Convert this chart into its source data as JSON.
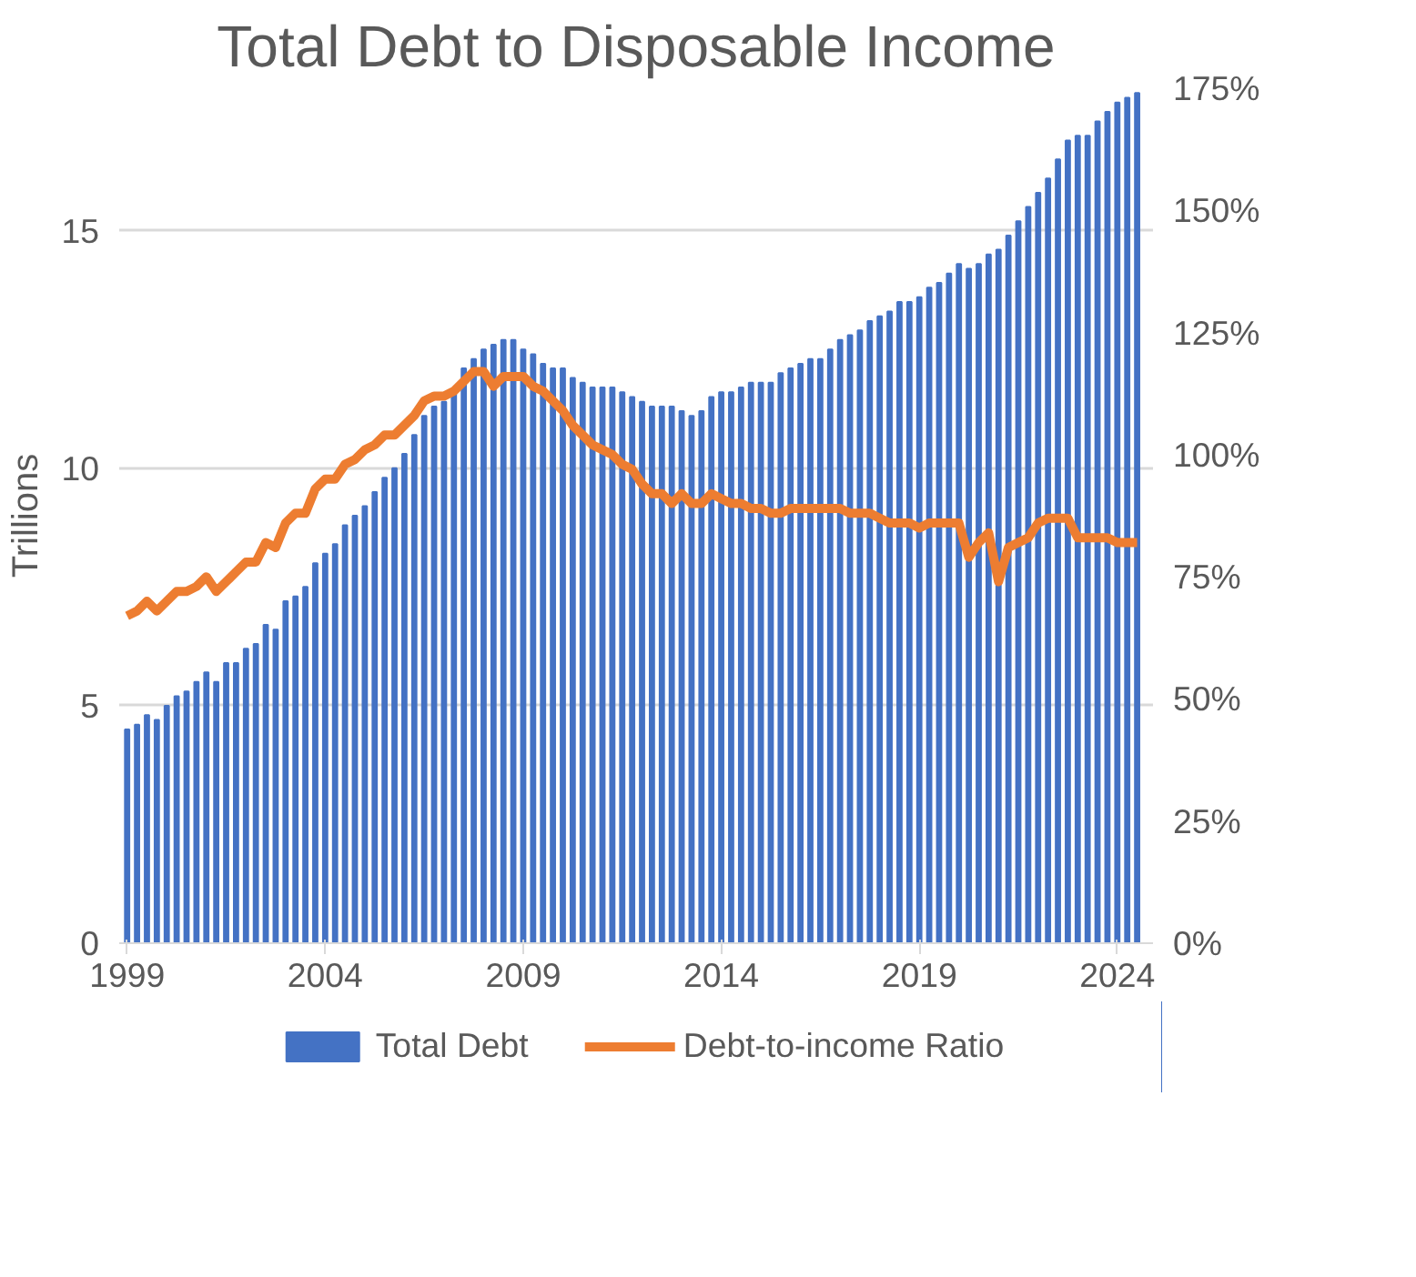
{
  "chart_data": {
    "type": "bar",
    "title": "Total Debt to Disposable Income",
    "ylabel": "Trillions",
    "x": [
      1999,
      1999.25,
      1999.5,
      1999.75,
      2000,
      2000.25,
      2000.5,
      2000.75,
      2001,
      2001.25,
      2001.5,
      2001.75,
      2002,
      2002.25,
      2002.5,
      2002.75,
      2003,
      2003.25,
      2003.5,
      2003.75,
      2004,
      2004.25,
      2004.5,
      2004.75,
      2005,
      2005.25,
      2005.5,
      2005.75,
      2006,
      2006.25,
      2006.5,
      2006.75,
      2007,
      2007.25,
      2007.5,
      2007.75,
      2008,
      2008.25,
      2008.5,
      2008.75,
      2009,
      2009.25,
      2009.5,
      2009.75,
      2010,
      2010.25,
      2010.5,
      2010.75,
      2011,
      2011.25,
      2011.5,
      2011.75,
      2012,
      2012.25,
      2012.5,
      2012.75,
      2013,
      2013.25,
      2013.5,
      2013.75,
      2014,
      2014.25,
      2014.5,
      2014.75,
      2015,
      2015.25,
      2015.5,
      2015.75,
      2016,
      2016.25,
      2016.5,
      2016.75,
      2017,
      2017.25,
      2017.5,
      2017.75,
      2018,
      2018.25,
      2018.5,
      2018.75,
      2019,
      2019.25,
      2019.5,
      2019.75,
      2020,
      2020.25,
      2020.5,
      2020.75,
      2021,
      2021.25,
      2021.5,
      2021.75,
      2022,
      2022.25,
      2022.5,
      2022.75,
      2023,
      2023.25,
      2023.5,
      2023.75,
      2024,
      2024.25,
      2024.5
    ],
    "xlim": [
      1998.8,
      2024.9
    ],
    "xticks": [
      1999,
      2004,
      2009,
      2014,
      2019,
      2024
    ],
    "ylim": [
      0,
      18
    ],
    "yticks": [
      0,
      5,
      10,
      15
    ],
    "y2lim": [
      0,
      175
    ],
    "y2ticks": [
      {
        "value": 0,
        "label": "0%"
      },
      {
        "value": 25,
        "label": "25%"
      },
      {
        "value": 50,
        "label": "50%"
      },
      {
        "value": 75,
        "label": "75%"
      },
      {
        "value": 100,
        "label": "100%"
      },
      {
        "value": 125,
        "label": "125%"
      },
      {
        "value": 150,
        "label": "150%"
      },
      {
        "value": 175,
        "label": "175%"
      }
    ],
    "grid": "y",
    "legend": "bottom",
    "series": [
      {
        "name": "Total Debt",
        "color": "#4472c4",
        "values": [
          4.5,
          4.6,
          4.8,
          4.7,
          5.0,
          5.2,
          5.3,
          5.5,
          5.7,
          5.5,
          5.9,
          5.9,
          6.2,
          6.3,
          6.7,
          6.6,
          7.2,
          7.3,
          7.5,
          8.0,
          8.2,
          8.4,
          8.8,
          9.0,
          9.2,
          9.5,
          9.8,
          10.0,
          10.3,
          10.7,
          11.1,
          11.3,
          11.4,
          11.6,
          12.1,
          12.3,
          12.5,
          12.6,
          12.7,
          12.7,
          12.5,
          12.4,
          12.2,
          12.1,
          12.1,
          11.9,
          11.8,
          11.7,
          11.7,
          11.7,
          11.6,
          11.5,
          11.4,
          11.3,
          11.3,
          11.3,
          11.2,
          11.1,
          11.2,
          11.5,
          11.6,
          11.6,
          11.7,
          11.8,
          11.8,
          11.8,
          12.0,
          12.1,
          12.2,
          12.3,
          12.3,
          12.5,
          12.7,
          12.8,
          12.9,
          13.1,
          13.2,
          13.3,
          13.5,
          13.5,
          13.6,
          13.8,
          13.9,
          14.1,
          14.3,
          14.2,
          14.3,
          14.5,
          14.6,
          14.9,
          15.2,
          15.5,
          15.8,
          16.1,
          16.5,
          16.9,
          17.0,
          17.0,
          17.3,
          17.5,
          17.7,
          17.8,
          17.9
        ]
      },
      {
        "name": "Debt-to-income Ratio",
        "type": "line",
        "axis": "y2",
        "color": "#ed7d31",
        "values": [
          67,
          68,
          70,
          68,
          70,
          72,
          72,
          73,
          75,
          72,
          74,
          76,
          78,
          78,
          82,
          81,
          86,
          88,
          88,
          93,
          95,
          95,
          98,
          99,
          101,
          102,
          104,
          104,
          106,
          108,
          111,
          112,
          112,
          113,
          115,
          117,
          117,
          114,
          116,
          116,
          116,
          114,
          113,
          111,
          109,
          106,
          104,
          102,
          101,
          100,
          98,
          97,
          94,
          92,
          92,
          90,
          92,
          90,
          90,
          92,
          91,
          90,
          90,
          89,
          89,
          88,
          88,
          89,
          89,
          89,
          89,
          89,
          89,
          88,
          88,
          88,
          87,
          86,
          86,
          86,
          85,
          86,
          86,
          86,
          86,
          79,
          82,
          84,
          74,
          81,
          82,
          83,
          86,
          87,
          87,
          87,
          83,
          83,
          83,
          83,
          82,
          82,
          82
        ]
      }
    ]
  }
}
